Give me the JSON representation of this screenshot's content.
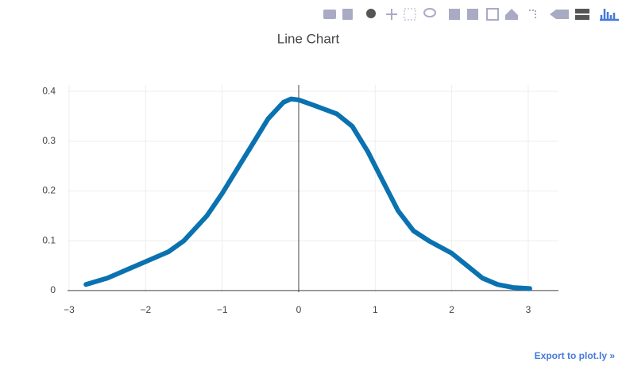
{
  "chart_data": {
    "type": "line",
    "title": "Line Chart",
    "x": [
      -2.78,
      -2.5,
      -2.2,
      -2.0,
      -1.7,
      -1.5,
      -1.2,
      -1.0,
      -0.8,
      -0.6,
      -0.4,
      -0.2,
      -0.1,
      0.0,
      0.2,
      0.5,
      0.7,
      0.9,
      1.1,
      1.3,
      1.5,
      1.7,
      2.0,
      2.2,
      2.4,
      2.6,
      2.8,
      3.02
    ],
    "series": [
      {
        "color": "#0a72b0",
        "values": [
          0.012,
          0.025,
          0.045,
          0.058,
          0.078,
          0.1,
          0.15,
          0.195,
          0.245,
          0.295,
          0.345,
          0.378,
          0.385,
          0.383,
          0.372,
          0.355,
          0.33,
          0.28,
          0.22,
          0.16,
          0.12,
          0.1,
          0.075,
          0.05,
          0.025,
          0.012,
          0.006,
          0.004
        ]
      }
    ],
    "xlim": [
      -3.021,
      3.395
    ],
    "xticks": [
      {
        "value": -3,
        "label": "−3"
      },
      {
        "value": -2,
        "label": "−2"
      },
      {
        "value": -1,
        "label": "−1"
      },
      0,
      1,
      2,
      3
    ],
    "ylim": [
      -0.0034,
      0.413
    ],
    "yticks": [
      0,
      0.1,
      0.2,
      0.3,
      0.4
    ],
    "grid": true,
    "export_link": "Export to plot.ly »"
  }
}
